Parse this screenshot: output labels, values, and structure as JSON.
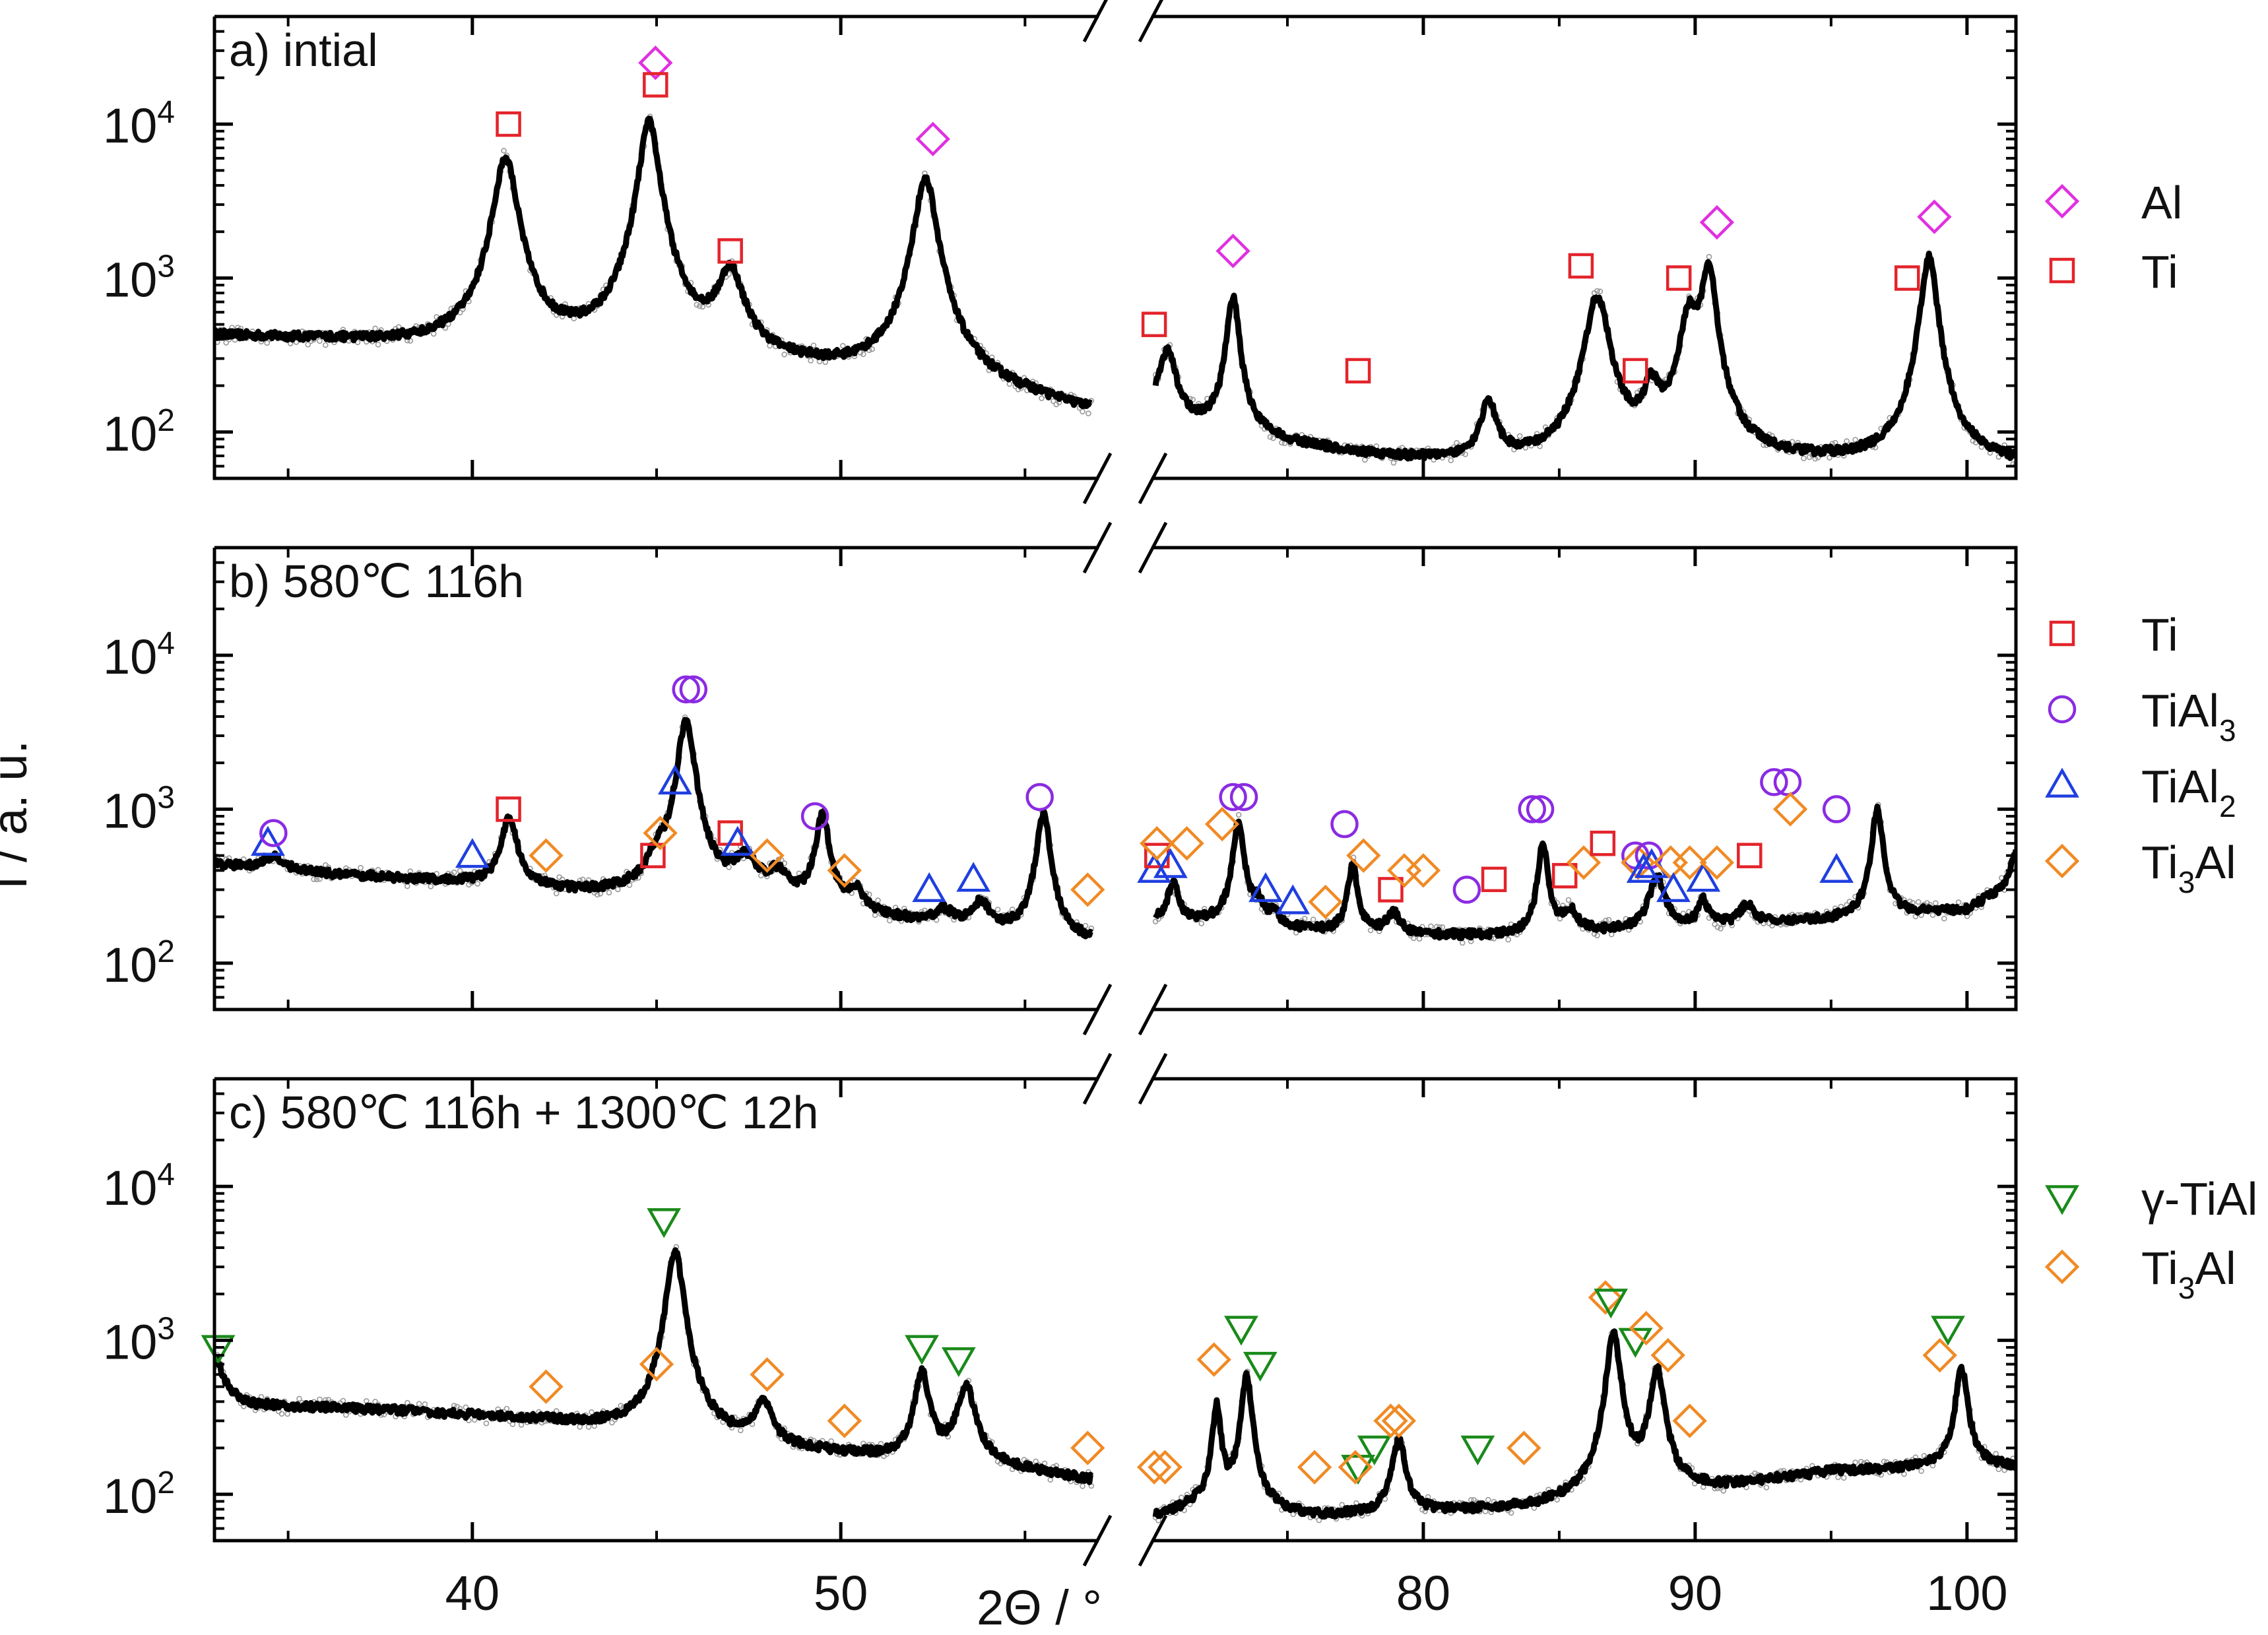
{
  "chart_data": {
    "type": "line",
    "yscale": "log",
    "ylabel": "I / a. u.",
    "xlabel": "2Θ / °",
    "x_break": {
      "left_range": [
        33,
        57
      ],
      "right_range": [
        70,
        101.8
      ]
    },
    "x_ticks": [
      {
        "value": 40,
        "label": "40"
      },
      {
        "value": 50,
        "label": "50"
      },
      {
        "value": 80,
        "label": "80"
      },
      {
        "value": 90,
        "label": "90"
      },
      {
        "value": 100,
        "label": "100"
      }
    ],
    "y_ticks": [
      {
        "value": 100,
        "base": "10",
        "exp": "2"
      },
      {
        "value": 1000,
        "base": "10",
        "exp": "3"
      },
      {
        "value": 10000,
        "base": "10",
        "exp": "4"
      }
    ],
    "ylim": [
      50,
      50000
    ],
    "marker_styles": {
      "Al": {
        "shape": "diamond",
        "color": "#e030e0"
      },
      "Ti": {
        "shape": "square",
        "color": "#e3242b"
      },
      "TiAl3": {
        "shape": "circle",
        "color": "#8a2be2"
      },
      "TiAl2": {
        "shape": "triangle-up",
        "color": "#1f3fe0"
      },
      "Ti3Al": {
        "shape": "diamond",
        "color": "#f08a24"
      },
      "gamma-TiAl": {
        "shape": "triangle-down",
        "color": "#1a8a1a"
      }
    },
    "panels": [
      {
        "title": "a) intial",
        "baseline": [
          [
            33,
            420
          ],
          [
            36,
            390
          ],
          [
            39.8,
            340
          ],
          [
            45,
            290
          ],
          [
            48,
            250
          ],
          [
            52,
            200
          ],
          [
            55,
            150
          ],
          [
            57,
            120
          ],
          [
            70,
            140
          ],
          [
            71,
            110
          ],
          [
            75,
            80
          ],
          [
            79,
            65
          ],
          [
            85,
            58
          ],
          [
            90,
            60
          ],
          [
            95,
            60
          ],
          [
            101.8,
            58
          ]
        ],
        "peaks": [
          [
            40.9,
            5800,
            0.28
          ],
          [
            44.8,
            10000,
            0.25
          ],
          [
            47.0,
            800,
            0.35
          ],
          [
            52.3,
            4200,
            0.28
          ],
          [
            70.6,
            220,
            0.3
          ],
          [
            73.0,
            650,
            0.22
          ],
          [
            82.4,
            90,
            0.3
          ],
          [
            86.4,
            700,
            0.4
          ],
          [
            88.4,
            110,
            0.3
          ],
          [
            89.8,
            500,
            0.35
          ],
          [
            90.5,
            1100,
            0.25
          ],
          [
            98.6,
            1300,
            0.28
          ]
        ],
        "legend": [
          {
            "key": "Al",
            "label": "Al",
            "sub": ""
          },
          {
            "key": "Ti",
            "label": "Ti",
            "sub": ""
          }
        ],
        "markers": [
          {
            "key": "Ti",
            "x": 40.98,
            "y": 10000
          },
          {
            "key": "Al",
            "x": 44.97,
            "y": 25000
          },
          {
            "key": "Ti",
            "x": 44.97,
            "y": 18000
          },
          {
            "key": "Ti",
            "x": 47.0,
            "y": 1500
          },
          {
            "key": "Al",
            "x": 52.5,
            "y": 8000
          },
          {
            "key": "Ti",
            "x": 70.1,
            "y": 500
          },
          {
            "key": "Al",
            "x": 73.0,
            "y": 1500
          },
          {
            "key": "Ti",
            "x": 77.6,
            "y": 250
          },
          {
            "key": "Ti",
            "x": 85.8,
            "y": 1200
          },
          {
            "key": "Ti",
            "x": 87.8,
            "y": 250
          },
          {
            "key": "Ti",
            "x": 89.4,
            "y": 1000
          },
          {
            "key": "Al",
            "x": 90.8,
            "y": 2300
          },
          {
            "key": "Ti",
            "x": 97.8,
            "y": 1000
          },
          {
            "key": "Al",
            "x": 98.8,
            "y": 2500
          }
        ]
      },
      {
        "title": "b) 580℃ 116h",
        "baseline": [
          [
            33,
            440
          ],
          [
            36,
            380
          ],
          [
            40,
            330
          ],
          [
            43,
            280
          ],
          [
            46,
            260
          ],
          [
            49,
            220
          ],
          [
            52,
            180
          ],
          [
            55,
            150
          ],
          [
            57,
            130
          ],
          [
            70,
            190
          ],
          [
            73,
            180
          ],
          [
            76,
            160
          ],
          [
            79,
            150
          ],
          [
            84,
            150
          ],
          [
            90,
            170
          ],
          [
            95,
            190
          ],
          [
            100,
            220
          ],
          [
            101.8,
            330
          ]
        ],
        "peaks": [
          [
            34.6,
            90,
            0.3
          ],
          [
            41.0,
            550,
            0.22
          ],
          [
            45.0,
            140,
            0.25
          ],
          [
            45.8,
            3500,
            0.22
          ],
          [
            47.4,
            200,
            0.35
          ],
          [
            48.3,
            130,
            0.35
          ],
          [
            49.5,
            700,
            0.18
          ],
          [
            50.4,
            80,
            0.25
          ],
          [
            52.8,
            40,
            0.3
          ],
          [
            53.8,
            80,
            0.25
          ],
          [
            55.5,
            800,
            0.18
          ],
          [
            70.8,
            150,
            0.2
          ],
          [
            73.2,
            650,
            0.2
          ],
          [
            73.9,
            60,
            0.2
          ],
          [
            74.5,
            40,
            0.2
          ],
          [
            77.4,
            280,
            0.18
          ],
          [
            78.9,
            60,
            0.3
          ],
          [
            84.4,
            450,
            0.18
          ],
          [
            85.4,
            60,
            0.3
          ],
          [
            88.6,
            200,
            0.3
          ],
          [
            90.3,
            80,
            0.2
          ],
          [
            91.9,
            60,
            0.3
          ],
          [
            96.7,
            800,
            0.2
          ],
          [
            101.8,
            200,
            0.2
          ]
        ],
        "legend": [
          {
            "key": "Ti",
            "label": "Ti",
            "sub": ""
          },
          {
            "key": "TiAl3",
            "label": "TiAl",
            "sub": "3"
          },
          {
            "key": "TiAl2",
            "label": "TiAl",
            "sub": "2"
          },
          {
            "key": "Ti3Al",
            "label": "Ti",
            "sub": "3",
            "suffix": "Al"
          }
        ],
        "markers": [
          {
            "key": "TiAl2",
            "x": 34.45,
            "y": 600
          },
          {
            "key": "TiAl3",
            "x": 34.6,
            "y": 700
          },
          {
            "key": "TiAl2",
            "x": 40.0,
            "y": 500
          },
          {
            "key": "Ti",
            "x": 40.98,
            "y": 1000
          },
          {
            "key": "Ti3Al",
            "x": 42.0,
            "y": 500
          },
          {
            "key": "Ti",
            "x": 44.9,
            "y": 500
          },
          {
            "key": "Ti3Al",
            "x": 45.1,
            "y": 700
          },
          {
            "key": "TiAl2",
            "x": 45.5,
            "y": 1500
          },
          {
            "key": "TiAl3",
            "x": 45.8,
            "y": 6000
          },
          {
            "key": "TiAl3",
            "x": 46.0,
            "y": 6000
          },
          {
            "key": "Ti",
            "x": 47.0,
            "y": 700
          },
          {
            "key": "TiAl2",
            "x": 47.2,
            "y": 600
          },
          {
            "key": "Ti3Al",
            "x": 48.0,
            "y": 500
          },
          {
            "key": "TiAl3",
            "x": 49.3,
            "y": 900
          },
          {
            "key": "Ti3Al",
            "x": 50.1,
            "y": 400
          },
          {
            "key": "TiAl2",
            "x": 52.4,
            "y": 300
          },
          {
            "key": "TiAl2",
            "x": 53.6,
            "y": 350
          },
          {
            "key": "TiAl3",
            "x": 55.4,
            "y": 1200
          },
          {
            "key": "Ti3Al",
            "x": 56.7,
            "y": 300
          },
          {
            "key": "TiAl2",
            "x": 70.1,
            "y": 400
          },
          {
            "key": "Ti",
            "x": 70.2,
            "y": 500
          },
          {
            "key": "Ti3Al",
            "x": 70.2,
            "y": 600
          },
          {
            "key": "TiAl2",
            "x": 70.7,
            "y": 430
          },
          {
            "key": "Ti3Al",
            "x": 71.3,
            "y": 600
          },
          {
            "key": "Ti3Al",
            "x": 72.6,
            "y": 800
          },
          {
            "key": "TiAl3",
            "x": 73.0,
            "y": 1200
          },
          {
            "key": "TiAl3",
            "x": 73.4,
            "y": 1200
          },
          {
            "key": "TiAl2",
            "x": 74.2,
            "y": 300
          },
          {
            "key": "TiAl2",
            "x": 75.2,
            "y": 250
          },
          {
            "key": "Ti3Al",
            "x": 76.4,
            "y": 250
          },
          {
            "key": "TiAl3",
            "x": 77.1,
            "y": 800
          },
          {
            "key": "Ti3Al",
            "x": 77.8,
            "y": 500
          },
          {
            "key": "Ti",
            "x": 78.8,
            "y": 300
          },
          {
            "key": "Ti3Al",
            "x": 79.3,
            "y": 400
          },
          {
            "key": "Ti3Al",
            "x": 80.0,
            "y": 400
          },
          {
            "key": "TiAl3",
            "x": 81.6,
            "y": 300
          },
          {
            "key": "Ti",
            "x": 82.6,
            "y": 350
          },
          {
            "key": "TiAl3",
            "x": 84.0,
            "y": 1000
          },
          {
            "key": "TiAl3",
            "x": 84.3,
            "y": 1000
          },
          {
            "key": "Ti",
            "x": 85.2,
            "y": 370
          },
          {
            "key": "Ti3Al",
            "x": 85.9,
            "y": 450
          },
          {
            "key": "Ti",
            "x": 86.6,
            "y": 600
          },
          {
            "key": "TiAl3",
            "x": 87.8,
            "y": 500
          },
          {
            "key": "Ti3Al",
            "x": 87.9,
            "y": 450
          },
          {
            "key": "TiAl3",
            "x": 88.3,
            "y": 500
          },
          {
            "key": "TiAl2",
            "x": 88.1,
            "y": 400
          },
          {
            "key": "TiAl2",
            "x": 88.4,
            "y": 430
          },
          {
            "key": "Ti3Al",
            "x": 89.1,
            "y": 450
          },
          {
            "key": "TiAl2",
            "x": 89.2,
            "y": 300
          },
          {
            "key": "Ti3Al",
            "x": 89.8,
            "y": 450
          },
          {
            "key": "TiAl2",
            "x": 90.3,
            "y": 350
          },
          {
            "key": "Ti3Al",
            "x": 90.8,
            "y": 450
          },
          {
            "key": "Ti",
            "x": 92.0,
            "y": 500
          },
          {
            "key": "TiAl3",
            "x": 92.9,
            "y": 1500
          },
          {
            "key": "TiAl3",
            "x": 93.4,
            "y": 1500
          },
          {
            "key": "Ti3Al",
            "x": 93.5,
            "y": 1000
          },
          {
            "key": "TiAl3",
            "x": 95.2,
            "y": 1000
          },
          {
            "key": "TiAl2",
            "x": 95.2,
            "y": 400
          }
        ]
      },
      {
        "title": "c) 580℃ 116h + 1300℃ 12h",
        "baseline": [
          [
            33,
            450
          ],
          [
            34,
            380
          ],
          [
            38,
            350
          ],
          [
            42,
            300
          ],
          [
            45,
            250
          ],
          [
            48,
            200
          ],
          [
            51,
            170
          ],
          [
            54,
            150
          ],
          [
            57,
            120
          ],
          [
            70,
            70
          ],
          [
            72,
            85
          ],
          [
            76,
            70
          ],
          [
            80,
            75
          ],
          [
            84,
            80
          ],
          [
            88,
            100
          ],
          [
            91,
            110
          ],
          [
            95,
            140
          ],
          [
            100,
            150
          ],
          [
            101.8,
            150
          ]
        ],
        "peaks": [
          [
            33.05,
            300,
            0.2
          ],
          [
            45.5,
            3500,
            0.22
          ],
          [
            47.9,
            200,
            0.22
          ],
          [
            52.2,
            450,
            0.2
          ],
          [
            53.4,
            350,
            0.25
          ],
          [
            72.4,
            300,
            0.15
          ],
          [
            73.5,
            500,
            0.2
          ],
          [
            79.1,
            150,
            0.25
          ],
          [
            87.0,
            1000,
            0.25
          ],
          [
            88.6,
            550,
            0.25
          ],
          [
            99.8,
            500,
            0.22
          ]
        ],
        "legend": [
          {
            "key": "gamma-TiAl",
            "label": "γ-TiAl",
            "sub": ""
          },
          {
            "key": "Ti3Al",
            "label": "Ti",
            "sub": "3",
            "suffix": "Al"
          }
        ],
        "markers": [
          {
            "key": "gamma-TiAl",
            "x": 33.1,
            "y": 900
          },
          {
            "key": "Ti3Al",
            "x": 42.0,
            "y": 500
          },
          {
            "key": "Ti3Al",
            "x": 45.0,
            "y": 700
          },
          {
            "key": "gamma-TiAl",
            "x": 45.2,
            "y": 6000
          },
          {
            "key": "Ti3Al",
            "x": 48.0,
            "y": 600
          },
          {
            "key": "Ti3Al",
            "x": 50.1,
            "y": 300
          },
          {
            "key": "gamma-TiAl",
            "x": 52.2,
            "y": 900
          },
          {
            "key": "gamma-TiAl",
            "x": 53.2,
            "y": 750
          },
          {
            "key": "Ti3Al",
            "x": 56.7,
            "y": 200
          },
          {
            "key": "Ti3Al",
            "x": 70.1,
            "y": 150
          },
          {
            "key": "Ti3Al",
            "x": 70.5,
            "y": 150
          },
          {
            "key": "Ti3Al",
            "x": 72.3,
            "y": 750
          },
          {
            "key": "gamma-TiAl",
            "x": 73.3,
            "y": 1200
          },
          {
            "key": "gamma-TiAl",
            "x": 74.0,
            "y": 700
          },
          {
            "key": "Ti3Al",
            "x": 76.0,
            "y": 150
          },
          {
            "key": "gamma-TiAl",
            "x": 77.6,
            "y": 150
          },
          {
            "key": "Ti3Al",
            "x": 77.5,
            "y": 150
          },
          {
            "key": "gamma-TiAl",
            "x": 78.2,
            "y": 200
          },
          {
            "key": "Ti3Al",
            "x": 78.8,
            "y": 300
          },
          {
            "key": "Ti3Al",
            "x": 79.1,
            "y": 300
          },
          {
            "key": "gamma-TiAl",
            "x": 82.0,
            "y": 200
          },
          {
            "key": "Ti3Al",
            "x": 83.7,
            "y": 200
          },
          {
            "key": "Ti3Al",
            "x": 86.7,
            "y": 1900
          },
          {
            "key": "gamma-TiAl",
            "x": 86.9,
            "y": 1800
          },
          {
            "key": "gamma-TiAl",
            "x": 87.8,
            "y": 1000
          },
          {
            "key": "Ti3Al",
            "x": 88.2,
            "y": 1200
          },
          {
            "key": "Ti3Al",
            "x": 89.0,
            "y": 800
          },
          {
            "key": "Ti3Al",
            "x": 89.8,
            "y": 300
          },
          {
            "key": "Ti3Al",
            "x": 99.0,
            "y": 800
          },
          {
            "key": "gamma-TiAl",
            "x": 99.3,
            "y": 1200
          }
        ]
      }
    ]
  }
}
